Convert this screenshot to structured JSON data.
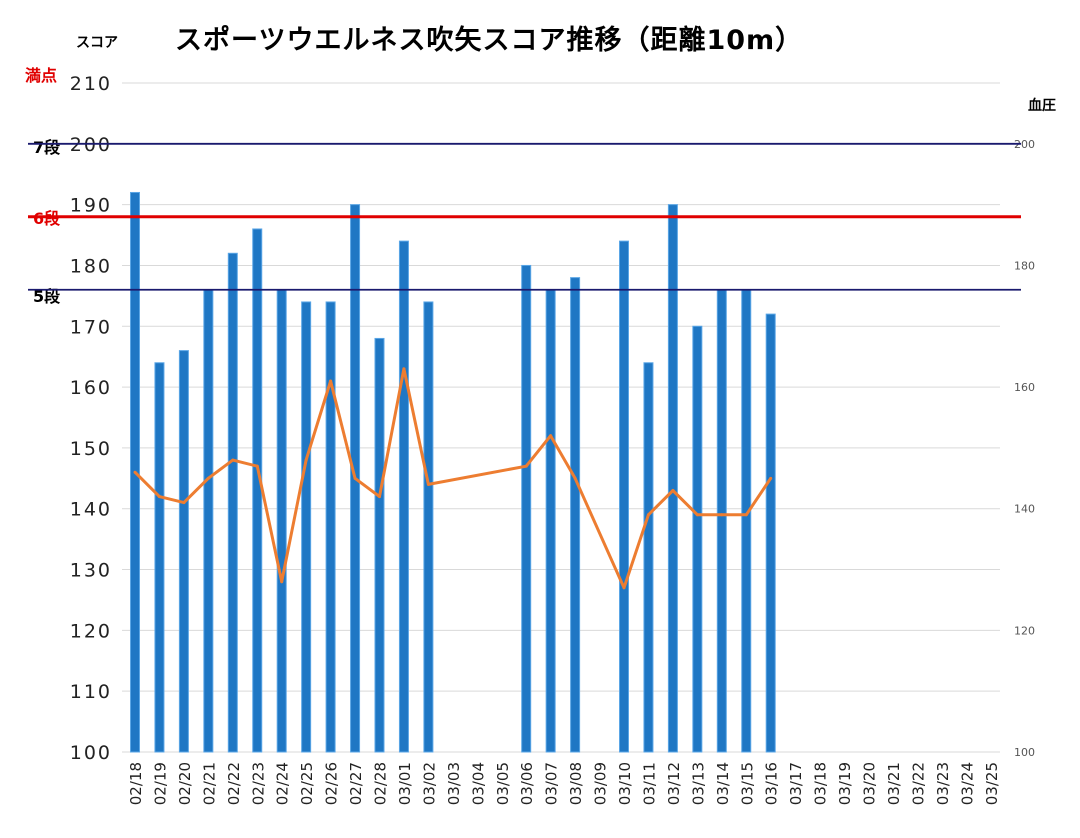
{
  "title": "スポーツウエルネス吹矢スコア推移（距離10m）",
  "y_left_label": "スコア",
  "y_right_label": "血圧",
  "reference_lines": [
    {
      "label": "満点",
      "value": 210,
      "color": "#e00000",
      "line": false
    },
    {
      "label": "7段",
      "value": 200,
      "color": "#1a1a6e",
      "line": true
    },
    {
      "label": "6段",
      "value": 188,
      "color": "#e00000",
      "line": true
    },
    {
      "label": "5段",
      "value": 176,
      "color": "#1a1a6e",
      "line": true
    }
  ],
  "colors": {
    "bar": "#1f77c4",
    "bar_edge": "#5aa6e6",
    "line": "#ed7d31",
    "grid": "#d9d9d9",
    "axis_text": "#222222"
  },
  "chart_data": {
    "type": "bar",
    "categories": [
      "02/18",
      "02/19",
      "02/20",
      "02/21",
      "02/22",
      "02/23",
      "02/24",
      "02/25",
      "02/26",
      "02/27",
      "02/28",
      "03/01",
      "03/02",
      "03/03",
      "03/04",
      "03/05",
      "03/06",
      "03/07",
      "03/08",
      "03/09",
      "03/10",
      "03/11",
      "03/12",
      "03/13",
      "03/14",
      "03/15",
      "03/16",
      "03/17",
      "03/18",
      "03/19",
      "03/20",
      "03/21",
      "03/22",
      "03/23",
      "03/24",
      "03/25"
    ],
    "series": [
      {
        "kind": "bar",
        "axis": "left",
        "values": [
          192,
          164,
          166,
          176,
          182,
          186,
          176,
          174,
          174,
          190,
          168,
          184,
          174,
          null,
          null,
          null,
          180,
          176,
          178,
          null,
          184,
          164,
          190,
          170,
          176,
          176,
          172,
          null,
          null,
          null,
          null,
          null,
          null,
          null,
          null,
          null
        ]
      },
      {
        "kind": "line",
        "axis": "right",
        "values": [
          146,
          142,
          141,
          145,
          148,
          147,
          128,
          148,
          161,
          145,
          142,
          163,
          144,
          null,
          null,
          null,
          147,
          152,
          145,
          null,
          127,
          139,
          143,
          139,
          139,
          139,
          145,
          null,
          null,
          null,
          null,
          null,
          null,
          null,
          null,
          null
        ]
      }
    ],
    "ylim_left": [
      100,
      210
    ],
    "yticks_left": [
      100,
      110,
      120,
      130,
      140,
      150,
      160,
      170,
      180,
      190,
      200,
      210
    ],
    "ylim_right": [
      100,
      210
    ],
    "yticks_right": [
      100,
      120,
      140,
      160,
      180,
      200
    ],
    "grid": true
  }
}
